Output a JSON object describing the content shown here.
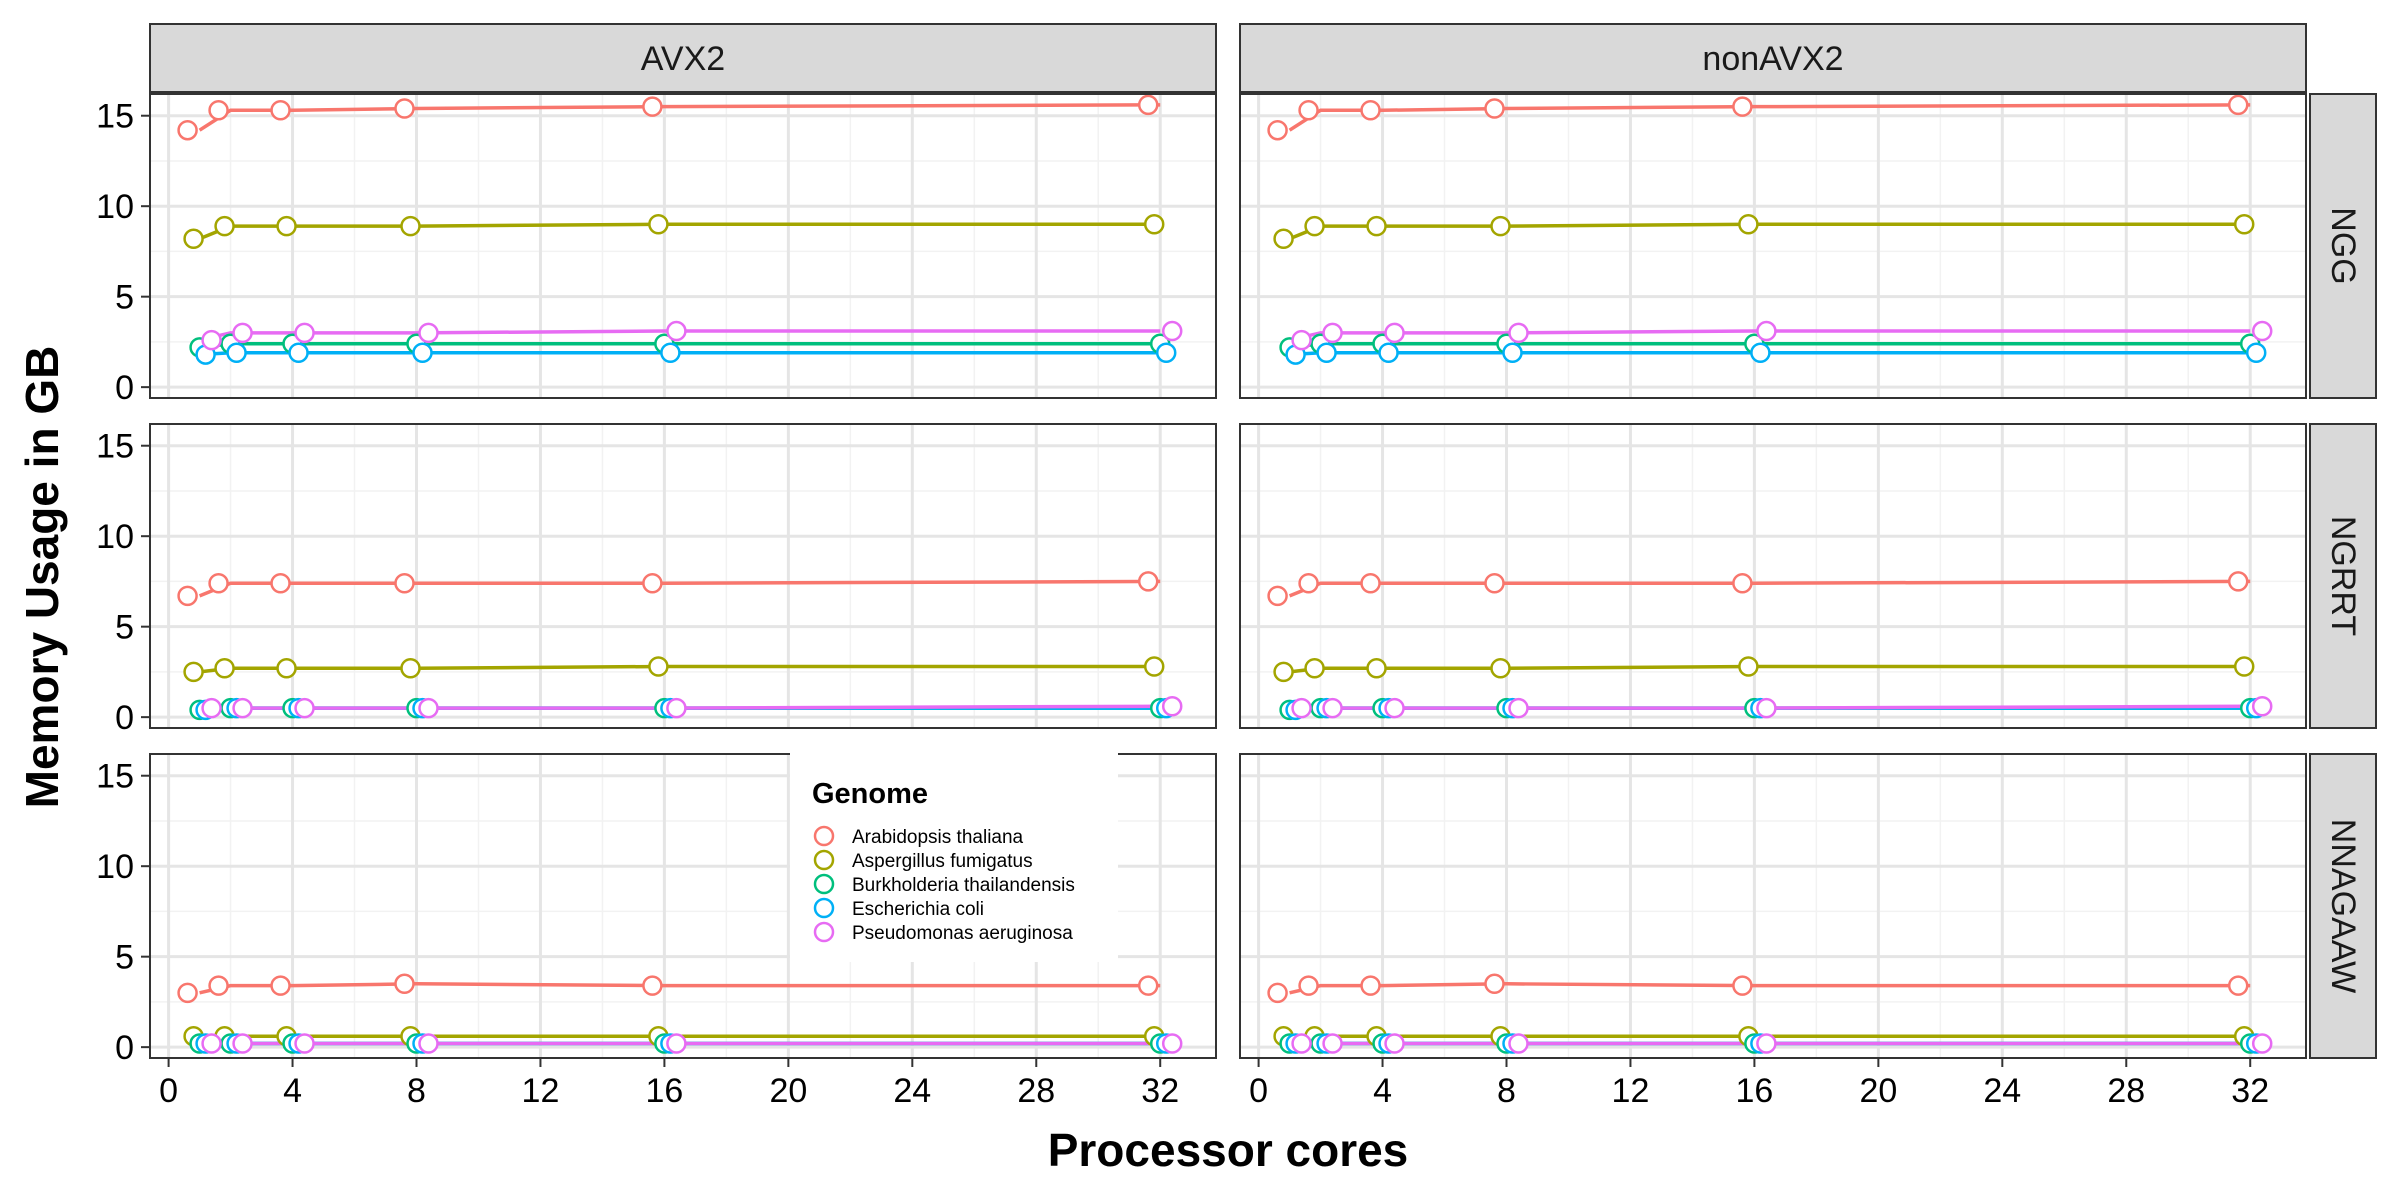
{
  "chart_data": {
    "type": "line",
    "xlabel": "Processor cores",
    "ylabel": "Memory Usage in GB",
    "xlim": [
      -0.6,
      33.8
    ],
    "ylim": [
      -0.6,
      16.2
    ],
    "xticks": [
      0,
      4,
      8,
      12,
      16,
      20,
      24,
      28,
      32
    ],
    "yticks": [
      0,
      5,
      10,
      15
    ],
    "column_facets": [
      "AVX2",
      "nonAVX2"
    ],
    "row_facets": [
      "NGG",
      "NGRRT",
      "NNAGAAW"
    ],
    "grid": true,
    "legend": {
      "title": "Genome",
      "placement": "inside-bottom-row-center",
      "entries": [
        "Arabidopsis thaliana",
        "Aspergillus fumigatus",
        "Burkholderia thailandensis",
        "Escherichia coli",
        "Pseudomonas aeruginosa"
      ]
    },
    "colors": {
      "Arabidopsis thaliana": "#F8766D",
      "Aspergillus fumigatus": "#A3A500",
      "Burkholderia thailandensis": "#00BF7D",
      "Escherichia coli": "#00B0F6",
      "Pseudomonas aeruginosa": "#E76BF3"
    },
    "x": [
      1,
      2,
      4,
      8,
      16,
      32
    ],
    "panels": [
      {
        "col": "AVX2",
        "row": "NGG",
        "series": [
          {
            "name": "Arabidopsis thaliana",
            "values": [
              14.2,
              15.3,
              15.3,
              15.4,
              15.5,
              15.6
            ]
          },
          {
            "name": "Aspergillus fumigatus",
            "values": [
              8.2,
              8.9,
              8.9,
              8.9,
              9.0,
              9.0
            ]
          },
          {
            "name": "Burkholderia thailandensis",
            "values": [
              2.2,
              2.4,
              2.4,
              2.4,
              2.4,
              2.4
            ]
          },
          {
            "name": "Escherichia coli",
            "values": [
              1.8,
              1.9,
              1.9,
              1.9,
              1.9,
              1.9
            ]
          },
          {
            "name": "Pseudomonas aeruginosa",
            "values": [
              2.6,
              3.0,
              3.0,
              3.0,
              3.1,
              3.1
            ]
          }
        ]
      },
      {
        "col": "nonAVX2",
        "row": "NGG",
        "series": [
          {
            "name": "Arabidopsis thaliana",
            "values": [
              14.2,
              15.3,
              15.3,
              15.4,
              15.5,
              15.6
            ]
          },
          {
            "name": "Aspergillus fumigatus",
            "values": [
              8.2,
              8.9,
              8.9,
              8.9,
              9.0,
              9.0
            ]
          },
          {
            "name": "Burkholderia thailandensis",
            "values": [
              2.2,
              2.4,
              2.4,
              2.4,
              2.4,
              2.4
            ]
          },
          {
            "name": "Escherichia coli",
            "values": [
              1.8,
              1.9,
              1.9,
              1.9,
              1.9,
              1.9
            ]
          },
          {
            "name": "Pseudomonas aeruginosa",
            "values": [
              2.6,
              3.0,
              3.0,
              3.0,
              3.1,
              3.1
            ]
          }
        ]
      },
      {
        "col": "AVX2",
        "row": "NGRRT",
        "series": [
          {
            "name": "Arabidopsis thaliana",
            "values": [
              6.7,
              7.4,
              7.4,
              7.4,
              7.4,
              7.5
            ]
          },
          {
            "name": "Aspergillus fumigatus",
            "values": [
              2.5,
              2.7,
              2.7,
              2.7,
              2.8,
              2.8
            ]
          },
          {
            "name": "Burkholderia thailandensis",
            "values": [
              0.4,
              0.5,
              0.5,
              0.5,
              0.5,
              0.5
            ]
          },
          {
            "name": "Escherichia coli",
            "values": [
              0.4,
              0.5,
              0.5,
              0.5,
              0.5,
              0.5
            ]
          },
          {
            "name": "Pseudomonas aeruginosa",
            "values": [
              0.5,
              0.5,
              0.5,
              0.5,
              0.5,
              0.6
            ]
          }
        ]
      },
      {
        "col": "nonAVX2",
        "row": "NGRRT",
        "series": [
          {
            "name": "Arabidopsis thaliana",
            "values": [
              6.7,
              7.4,
              7.4,
              7.4,
              7.4,
              7.5
            ]
          },
          {
            "name": "Aspergillus fumigatus",
            "values": [
              2.5,
              2.7,
              2.7,
              2.7,
              2.8,
              2.8
            ]
          },
          {
            "name": "Burkholderia thailandensis",
            "values": [
              0.4,
              0.5,
              0.5,
              0.5,
              0.5,
              0.5
            ]
          },
          {
            "name": "Escherichia coli",
            "values": [
              0.4,
              0.5,
              0.5,
              0.5,
              0.5,
              0.5
            ]
          },
          {
            "name": "Pseudomonas aeruginosa",
            "values": [
              0.5,
              0.5,
              0.5,
              0.5,
              0.5,
              0.6
            ]
          }
        ]
      },
      {
        "col": "AVX2",
        "row": "NNAGAAW",
        "series": [
          {
            "name": "Arabidopsis thaliana",
            "values": [
              3.0,
              3.4,
              3.4,
              3.5,
              3.4,
              3.4
            ]
          },
          {
            "name": "Aspergillus fumigatus",
            "values": [
              0.6,
              0.6,
              0.6,
              0.6,
              0.6,
              0.6
            ]
          },
          {
            "name": "Burkholderia thailandensis",
            "values": [
              0.2,
              0.2,
              0.2,
              0.2,
              0.2,
              0.2
            ]
          },
          {
            "name": "Escherichia coli",
            "values": [
              0.2,
              0.2,
              0.2,
              0.2,
              0.2,
              0.2
            ]
          },
          {
            "name": "Pseudomonas aeruginosa",
            "values": [
              0.2,
              0.2,
              0.2,
              0.2,
              0.2,
              0.2
            ]
          }
        ]
      },
      {
        "col": "nonAVX2",
        "row": "NNAGAAW",
        "series": [
          {
            "name": "Arabidopsis thaliana",
            "values": [
              3.0,
              3.4,
              3.4,
              3.5,
              3.4,
              3.4
            ]
          },
          {
            "name": "Aspergillus fumigatus",
            "values": [
              0.6,
              0.6,
              0.6,
              0.6,
              0.6,
              0.6
            ]
          },
          {
            "name": "Burkholderia thailandensis",
            "values": [
              0.2,
              0.2,
              0.2,
              0.2,
              0.2,
              0.2
            ]
          },
          {
            "name": "Escherichia coli",
            "values": [
              0.2,
              0.2,
              0.2,
              0.2,
              0.2,
              0.2
            ]
          },
          {
            "name": "Pseudomonas aeruginosa",
            "values": [
              0.2,
              0.2,
              0.2,
              0.2,
              0.2,
              0.2
            ]
          }
        ]
      }
    ]
  }
}
